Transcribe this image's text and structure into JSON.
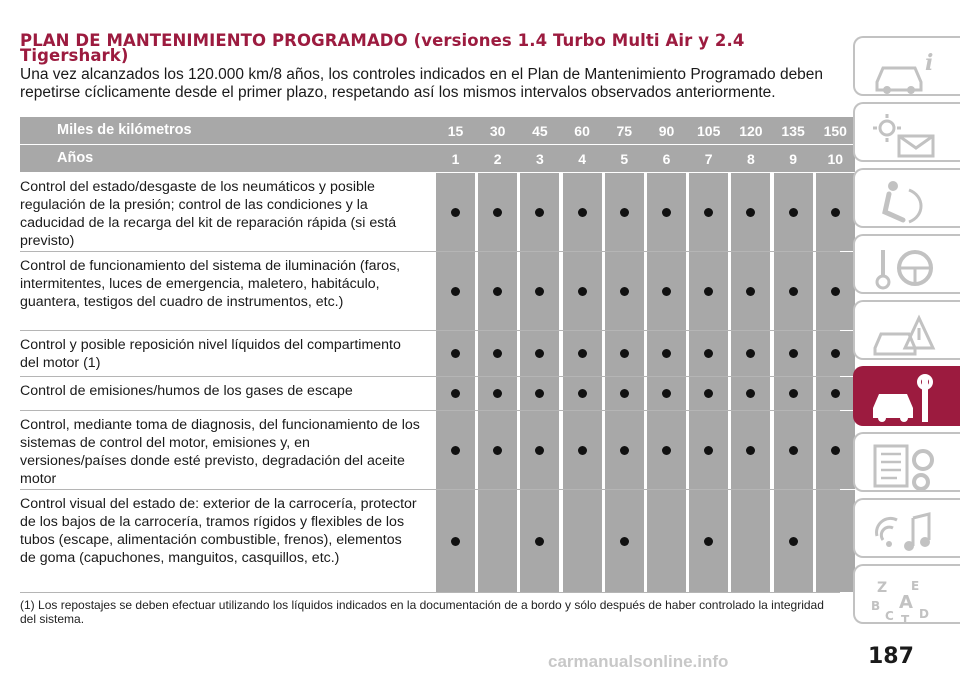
{
  "page": {
    "title": "PLAN DE MANTENIMIENTO PROGRAMADO (versiones 1.4 Turbo Multi Air y 2.4 Tigershark)",
    "intro": "Una vez alcanzados los 120.000 km/8 años, los controles indicados en el Plan de Mantenimiento Programado deben repetirse cíclicamente desde el primer plazo, respetando así los mismos intervalos observados anteriormente.",
    "page_number": "187",
    "watermark": "carmanualsonline.info"
  },
  "table": {
    "header_km": {
      "label": "Miles de kilómetros",
      "values": [
        "15",
        "30",
        "45",
        "60",
        "75",
        "90",
        "105",
        "120",
        "135",
        "150"
      ]
    },
    "header_years": {
      "label": "Años",
      "values": [
        "1",
        "2",
        "3",
        "4",
        "5",
        "6",
        "7",
        "8",
        "9",
        "10"
      ]
    },
    "rows": [
      {
        "text": "Control del estado/desgaste de los neumáticos y posible regulación de la presión; control de las condiciones y la caducidad de la recarga del kit de reparación rápida (si está previsto)",
        "marks": [
          1,
          1,
          1,
          1,
          1,
          1,
          1,
          1,
          1,
          1
        ]
      },
      {
        "text": "Control de funcionamiento del sistema de iluminación (faros, intermitentes, luces de emergencia, maletero, habitáculo, guantera, testigos del cuadro de instrumentos, etc.)",
        "marks": [
          1,
          1,
          1,
          1,
          1,
          1,
          1,
          1,
          1,
          1
        ]
      },
      {
        "text": "Control y posible reposición nivel líquidos del compartimento del motor (1)",
        "marks": [
          1,
          1,
          1,
          1,
          1,
          1,
          1,
          1,
          1,
          1
        ]
      },
      {
        "text": "Control de emisiones/humos de los gases de escape",
        "marks": [
          1,
          1,
          1,
          1,
          1,
          1,
          1,
          1,
          1,
          1
        ]
      },
      {
        "text": "Control, mediante toma de diagnosis, del funcionamiento de los sistemas de control del motor, emisiones y, en versiones/países donde esté previsto, degradación del aceite motor",
        "marks": [
          1,
          1,
          1,
          1,
          1,
          1,
          1,
          1,
          1,
          1
        ]
      },
      {
        "text": "Control visual del estado de: exterior de la carrocería, protector de los bajos de la carrocería, tramos rígidos y flexibles de los tubos (escape, alimentación combustible, frenos), elementos de goma (capuchones, manguitos, casquillos, etc.)",
        "marks": [
          1,
          0,
          1,
          0,
          1,
          0,
          1,
          0,
          1,
          0
        ]
      }
    ]
  },
  "footnote": {
    "marker": "(1)",
    "text": "Los repostajes se deben efectuar utilizando los líquidos indicados en la documentación de a bordo y sólo después de haber controlado la integridad del sistema."
  },
  "sidebar": {
    "tabs": [
      {
        "icon": "car-info-icon",
        "active": false
      },
      {
        "icon": "warning-lights-icon",
        "active": false
      },
      {
        "icon": "seat-airbag-icon",
        "active": false
      },
      {
        "icon": "key-steering-wheel-icon",
        "active": false
      },
      {
        "icon": "car-emergency-icon",
        "active": false
      },
      {
        "icon": "car-wrench-icon",
        "active": true
      },
      {
        "icon": "specs-gear-icon",
        "active": false
      },
      {
        "icon": "multimedia-icon",
        "active": false
      },
      {
        "icon": "alphabet-index-icon",
        "active": false
      }
    ],
    "accent_color": "#9c1b3f",
    "border_color": "#c2c2c2"
  },
  "colors": {
    "title": "#9c1b3f",
    "header_bg": "#a8a8a8",
    "column_bg": "#a8a8a8",
    "dot": "#111111"
  }
}
